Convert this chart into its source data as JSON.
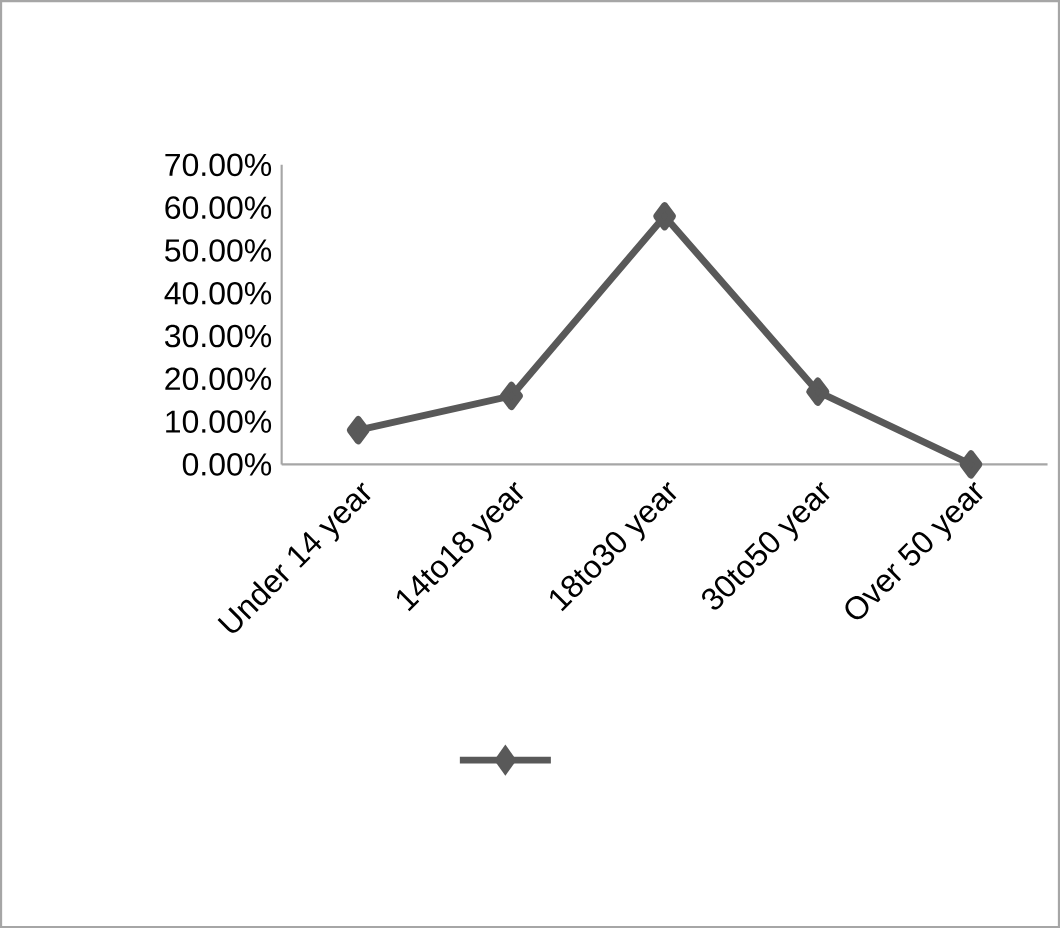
{
  "chart_data": {
    "type": "line",
    "categories": [
      "Under 14 year",
      "14to18 year",
      "18to30 year",
      "30to50 year",
      "Over 50 year"
    ],
    "series": [
      {
        "color": "#595959",
        "values": [
          8,
          16,
          58,
          17,
          0
        ]
      }
    ],
    "ylim": [
      0,
      70
    ],
    "yticks": [
      {
        "value": 0,
        "label": "0.00%"
      },
      {
        "value": 10,
        "label": "10.00%"
      },
      {
        "value": 20,
        "label": "20.00%"
      },
      {
        "value": 30,
        "label": "30.00%"
      },
      {
        "value": 40,
        "label": "40.00%"
      },
      {
        "value": 50,
        "label": "50.00%"
      },
      {
        "value": 60,
        "label": "60.00%"
      },
      {
        "value": 70,
        "label": "70.00%"
      }
    ],
    "marker": "diamond",
    "line_style": "solid",
    "grid": false
  }
}
